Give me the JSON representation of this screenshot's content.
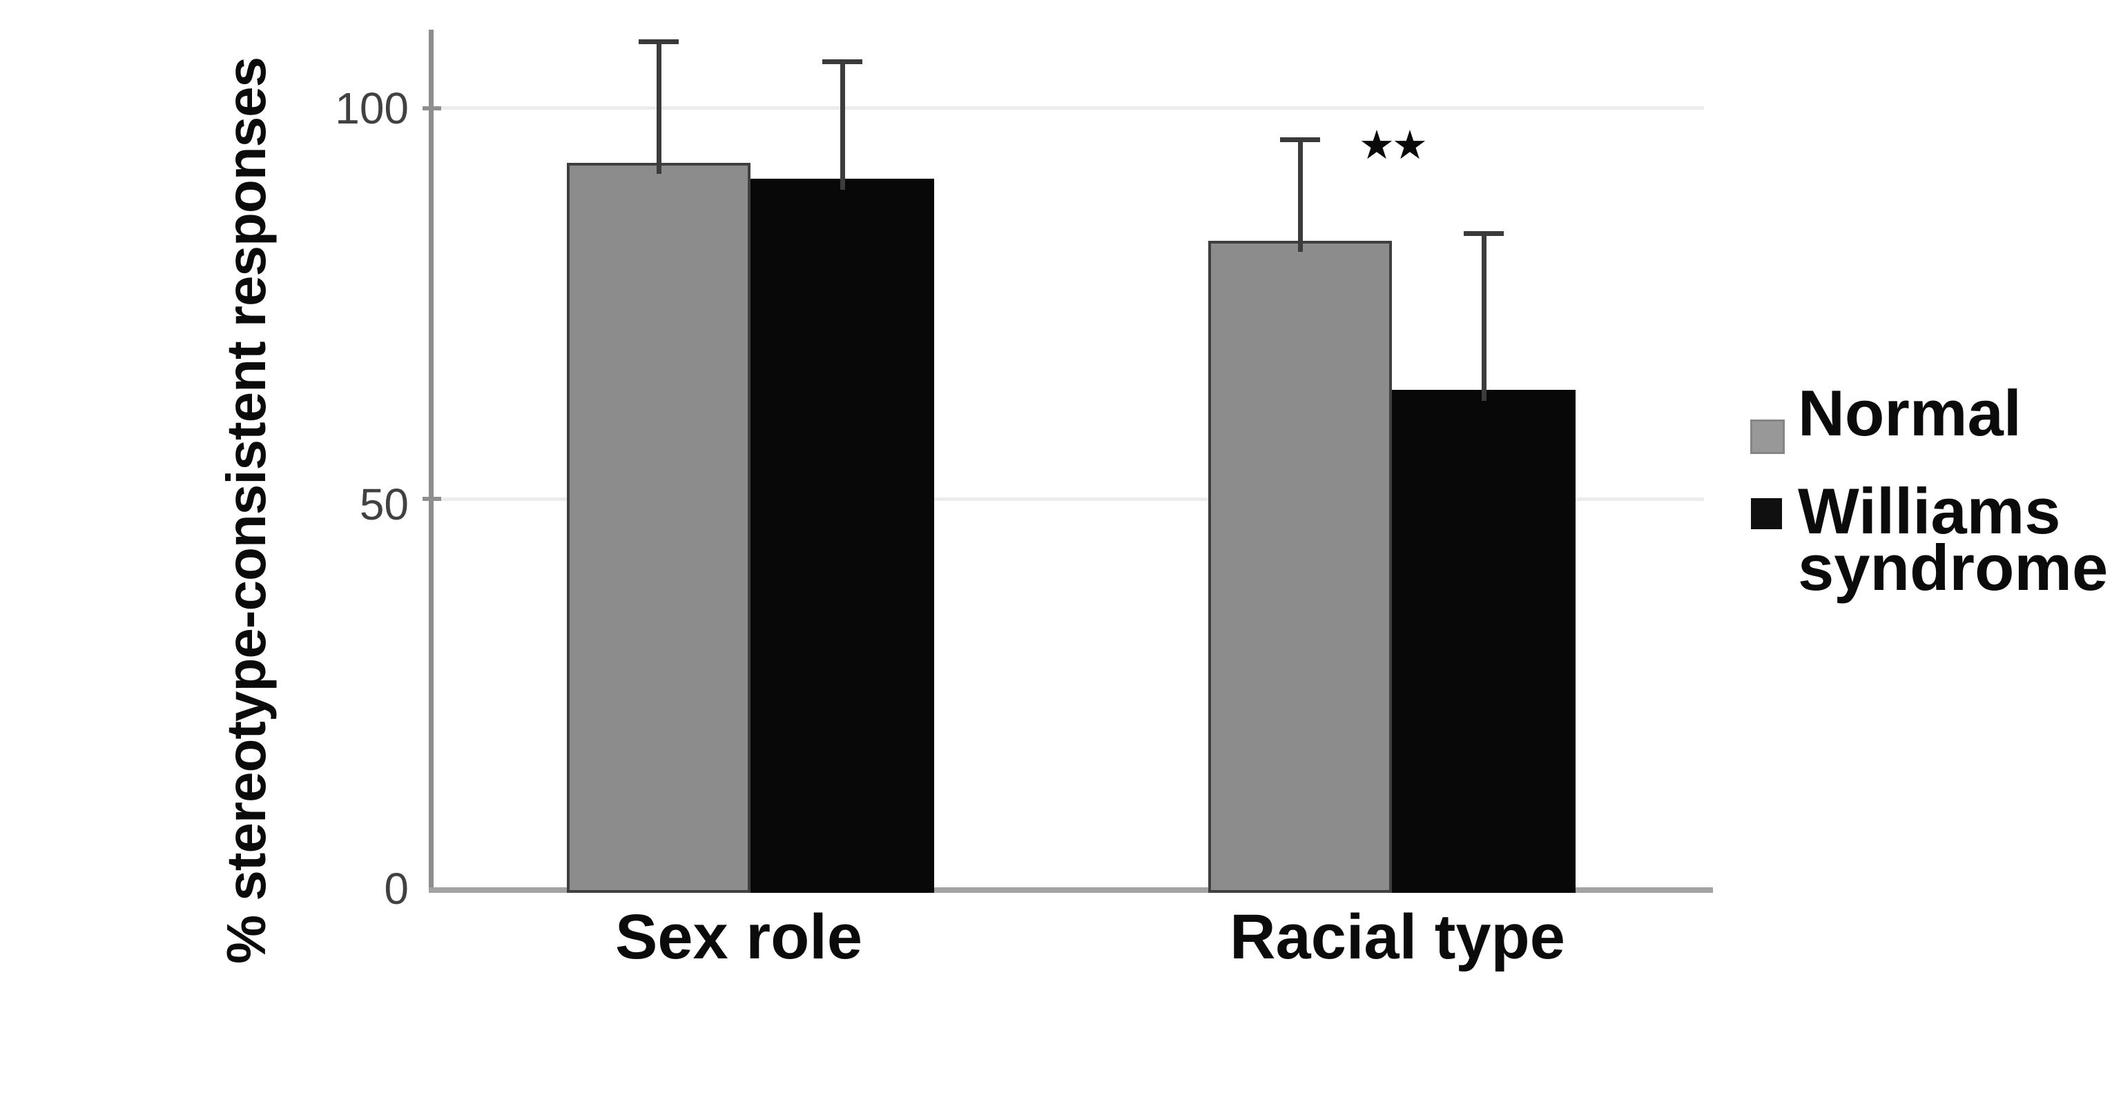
{
  "chart_data": {
    "type": "bar",
    "title": "",
    "ylabel": "% stereotype-consistent responses",
    "xlabel": "",
    "categories": [
      "Sex role",
      "Racial type"
    ],
    "series": [
      {
        "name": "Normal",
        "color": "#8c8c8c",
        "values": [
          93,
          83
        ],
        "errors_plus": [
          15.5,
          13
        ]
      },
      {
        "name": "Williams syndrome",
        "color": "#080808",
        "values": [
          91,
          64
        ],
        "errors_plus": [
          15,
          20
        ]
      }
    ],
    "ylim": [
      0,
      110
    ],
    "yticks": [
      100,
      50,
      0
    ],
    "ytick_labels": [
      "100",
      "50",
      "0"
    ],
    "grid": "horizontal lines at 50 and 100",
    "legend_position": "right of plot",
    "error_bars": "upper whiskers with caps only",
    "annotations": [
      {
        "text": "★★",
        "meaning": "significance marker",
        "location": "above Racial type bars"
      }
    ]
  },
  "legend": {
    "normal_label": "Normal",
    "williams_label": "Williams\nsyndrome"
  }
}
